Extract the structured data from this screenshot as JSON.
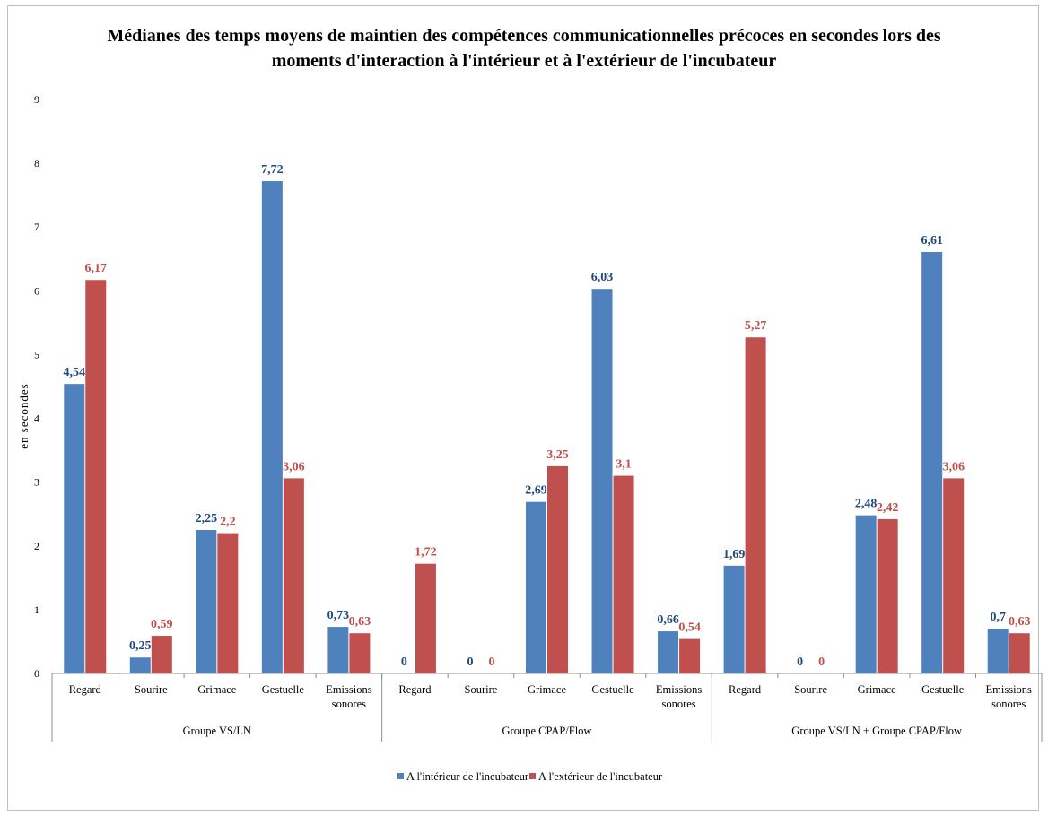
{
  "chart_data": {
    "type": "bar",
    "title_line1": "Médianes des temps moyens de maintien des compétences communicationnelles précoces en secondes lors des",
    "title_line2": "moments d'interaction à l'intérieur et à l'extérieur de l'incubateur",
    "ylabel": "en secondes",
    "ylim": [
      0,
      9
    ],
    "yticks": [
      "0",
      "1",
      "2",
      "3",
      "4",
      "5",
      "6",
      "7",
      "8",
      "9"
    ],
    "grid": false,
    "legend_position": "bottom",
    "groups": [
      {
        "name": "Groupe VS/LN",
        "categories": [
          {
            "label": "Regard",
            "values": [
              4.54,
              6.17
            ],
            "labels": [
              "4,54",
              "6,17"
            ]
          },
          {
            "label": "Sourire",
            "values": [
              0.25,
              0.59
            ],
            "labels": [
              "0,25",
              "0,59"
            ]
          },
          {
            "label": "Grimace",
            "values": [
              2.25,
              2.2
            ],
            "labels": [
              "2,25",
              "2,2"
            ]
          },
          {
            "label": "Gestuelle",
            "values": [
              7.72,
              3.06
            ],
            "labels": [
              "7,72",
              "3,06"
            ]
          },
          {
            "label": "Emissions sonores",
            "values": [
              0.73,
              0.63
            ],
            "labels": [
              "0,73",
              "0,63"
            ]
          }
        ]
      },
      {
        "name": "Groupe CPAP/Flow",
        "categories": [
          {
            "label": "Regard",
            "values": [
              0,
              1.72
            ],
            "labels": [
              "0",
              "1,72"
            ]
          },
          {
            "label": "Sourire",
            "values": [
              0,
              0
            ],
            "labels": [
              "0",
              "0"
            ]
          },
          {
            "label": "Grimace",
            "values": [
              2.69,
              3.25
            ],
            "labels": [
              "2,69",
              "3,25"
            ]
          },
          {
            "label": "Gestuelle",
            "values": [
              6.03,
              3.1
            ],
            "labels": [
              "6,03",
              "3,1"
            ]
          },
          {
            "label": "Emissions sonores",
            "values": [
              0.66,
              0.54
            ],
            "labels": [
              "0,66",
              "0,54"
            ]
          }
        ]
      },
      {
        "name": "Groupe VS/LN + Groupe CPAP/Flow",
        "categories": [
          {
            "label": "Regard",
            "values": [
              1.69,
              5.27
            ],
            "labels": [
              "1,69",
              "5,27"
            ]
          },
          {
            "label": "Sourire",
            "values": [
              0,
              0
            ],
            "labels": [
              "0",
              "0"
            ]
          },
          {
            "label": "Grimace",
            "values": [
              2.48,
              2.42
            ],
            "labels": [
              "2,48",
              "2,42"
            ]
          },
          {
            "label": "Gestuelle",
            "values": [
              6.61,
              3.06
            ],
            "labels": [
              "6,61",
              "3,06"
            ]
          },
          {
            "label": "Emissions sonores",
            "values": [
              0.7,
              0.63
            ],
            "labels": [
              "0,7",
              "0,63"
            ]
          }
        ]
      }
    ],
    "series": [
      {
        "name": "A l'intérieur de l'incubateur",
        "color": "#4f81bd",
        "label_color": "#1f497d"
      },
      {
        "name": "A l'extérieur de l'incubateur",
        "color": "#c0504d",
        "label_color": "#c0504d"
      }
    ]
  }
}
